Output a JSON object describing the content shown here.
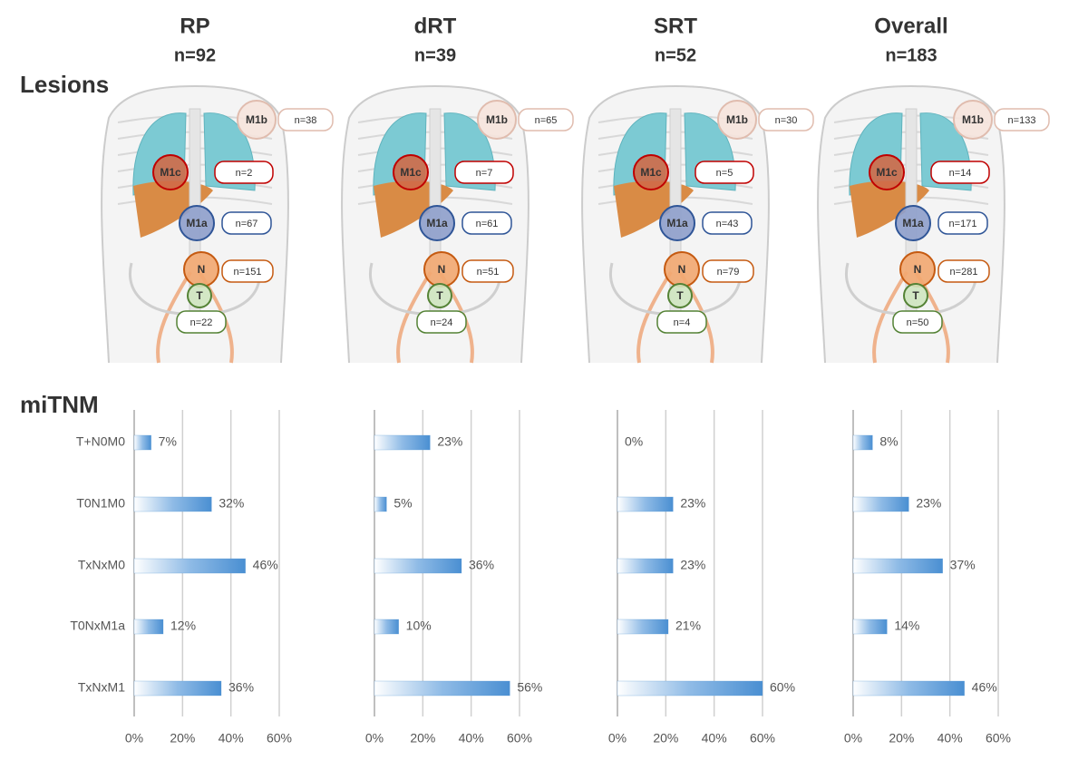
{
  "row_labels": [
    "Lesions",
    "miTNM"
  ],
  "chart_data": [
    {
      "type": "bar",
      "orientation": "horizontal",
      "title": "RP",
      "subtitle": "n=92",
      "categories": [
        "T+N0M0",
        "T0N1M0",
        "TxNxM0",
        "T0NxM1a",
        "TxNxM1"
      ],
      "values": [
        7,
        32,
        46,
        12,
        36
      ],
      "value_labels": [
        "7%",
        "32%",
        "46%",
        "12%",
        "36%"
      ],
      "color": "#5b9bd5",
      "xlim": [
        0,
        60
      ],
      "xticks": [
        {
          "value": 0,
          "label": "0%"
        },
        {
          "value": 20,
          "label": "20%"
        },
        {
          "value": 40,
          "label": "40%"
        },
        {
          "value": 60,
          "label": "60%"
        }
      ],
      "grid": true,
      "lesions": [
        {
          "stage": "M1b",
          "count": "n=38"
        },
        {
          "stage": "M1c",
          "count": "n=2"
        },
        {
          "stage": "M1a",
          "count": "n=67"
        },
        {
          "stage": "N",
          "count": "n=151"
        },
        {
          "stage": "T",
          "count": "n=22"
        }
      ]
    },
    {
      "type": "bar",
      "orientation": "horizontal",
      "title": "dRT",
      "subtitle": "n=39",
      "values": [
        23,
        5,
        36,
        10,
        56
      ],
      "value_labels": [
        "23%",
        "5%",
        "36%",
        "10%",
        "56%"
      ],
      "color": "#5b9bd5",
      "xlim": [
        0,
        60
      ],
      "xticks": [
        {
          "value": 0,
          "label": "0%"
        },
        {
          "value": 20,
          "label": "20%"
        },
        {
          "value": 40,
          "label": "40%"
        },
        {
          "value": 60,
          "label": "60%"
        }
      ],
      "grid": true,
      "lesions": [
        {
          "stage": "M1b",
          "count": "n=65"
        },
        {
          "stage": "M1c",
          "count": "n=7"
        },
        {
          "stage": "M1a",
          "count": "n=61"
        },
        {
          "stage": "N",
          "count": "n=51"
        },
        {
          "stage": "T",
          "count": "n=24"
        }
      ]
    },
    {
      "type": "bar",
      "orientation": "horizontal",
      "title": "SRT",
      "subtitle": "n=52",
      "values": [
        0,
        23,
        23,
        21,
        60
      ],
      "value_labels": [
        "0%",
        "23%",
        "23%",
        "21%",
        "60%"
      ],
      "color": "#5b9bd5",
      "xlim": [
        0,
        60
      ],
      "xticks": [
        {
          "value": 0,
          "label": "0%"
        },
        {
          "value": 20,
          "label": "20%"
        },
        {
          "value": 40,
          "label": "40%"
        },
        {
          "value": 60,
          "label": "60%"
        }
      ],
      "grid": true,
      "lesions": [
        {
          "stage": "M1b",
          "count": "n=30"
        },
        {
          "stage": "M1c",
          "count": "n=5"
        },
        {
          "stage": "M1a",
          "count": "n=43"
        },
        {
          "stage": "N",
          "count": "n=79"
        },
        {
          "stage": "T",
          "count": "n=4"
        }
      ]
    },
    {
      "type": "bar",
      "orientation": "horizontal",
      "title": "Overall",
      "subtitle": "n=183",
      "values": [
        8,
        23,
        37,
        14,
        46
      ],
      "value_labels": [
        "8%",
        "23%",
        "37%",
        "14%",
        "46%"
      ],
      "color": "#5b9bd5",
      "xlim": [
        0,
        60
      ],
      "xticks": [
        {
          "value": 0,
          "label": "0%"
        },
        {
          "value": 20,
          "label": "20%"
        },
        {
          "value": 40,
          "label": "40%"
        },
        {
          "value": 60,
          "label": "60%"
        }
      ],
      "grid": true,
      "lesions": [
        {
          "stage": "M1b",
          "count": "n=133"
        },
        {
          "stage": "M1c",
          "count": "n=14"
        },
        {
          "stage": "M1a",
          "count": "n=171"
        },
        {
          "stage": "N",
          "count": "n=281"
        },
        {
          "stage": "T",
          "count": "n=50"
        }
      ]
    }
  ]
}
